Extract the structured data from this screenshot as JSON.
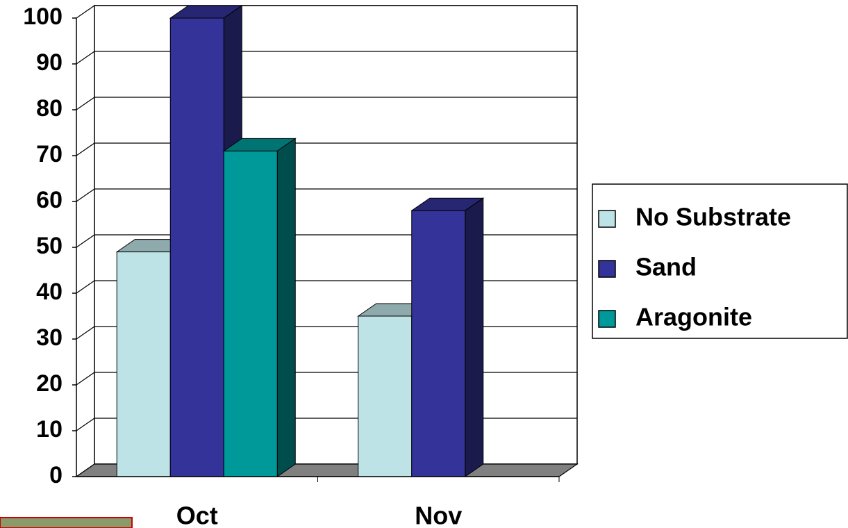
{
  "chart_data": {
    "type": "bar3d",
    "categories": [
      "Oct",
      "Nov"
    ],
    "series": [
      {
        "name": "No Substrate",
        "color": "#bde3e6",
        "values": [
          49,
          35
        ]
      },
      {
        "name": "Sand",
        "color": "#333399",
        "values": [
          100,
          58
        ]
      },
      {
        "name": "Aragonite",
        "color": "#009999",
        "values": [
          71,
          null
        ]
      }
    ],
    "ylim": [
      0,
      100
    ],
    "yticks": [
      0,
      10,
      20,
      30,
      40,
      50,
      60,
      70,
      80,
      90,
      100
    ],
    "grid": true,
    "legend": "right"
  }
}
